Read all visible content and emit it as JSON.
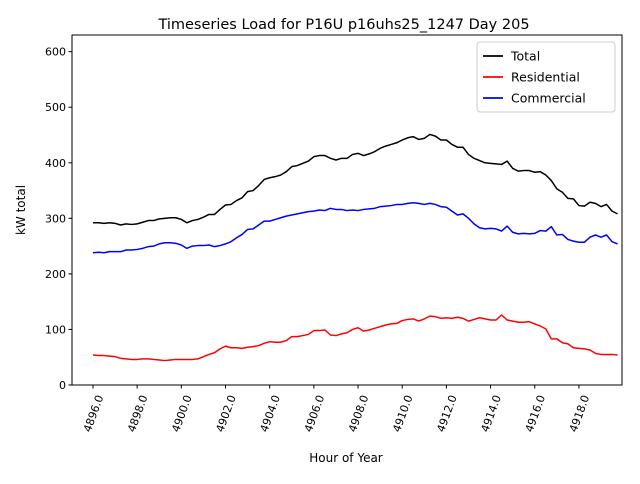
{
  "chart_data": {
    "type": "line",
    "title": "Timeseries Load for P16U p16uhs25_1247  Day 205",
    "xlabel": "Hour of Year",
    "ylabel": "kW total",
    "xlim": [
      4895.05,
      4919.95
    ],
    "ylim": [
      0,
      630
    ],
    "xticks": [
      4896,
      4898,
      4900,
      4902,
      4904,
      4906,
      4908,
      4910,
      4912,
      4914,
      4916,
      4918
    ],
    "xtick_labels": [
      "4896.0",
      "4898.0",
      "4900.0",
      "4902.0",
      "4904.0",
      "4906.0",
      "4908.0",
      "4910.0",
      "4912.0",
      "4914.0",
      "4916.0",
      "4918.0"
    ],
    "yticks": [
      0,
      100,
      200,
      300,
      400,
      500,
      600
    ],
    "ytick_labels": [
      "0",
      "100",
      "200",
      "300",
      "400",
      "500",
      "600"
    ],
    "legend_position": "top-right",
    "x_start": 4896.0,
    "x_step": 0.25,
    "series": [
      {
        "name": "Total",
        "color": "#000000",
        "values": [
          292,
          292,
          291,
          292,
          291,
          288,
          290,
          289,
          290,
          293,
          296,
          296,
          299,
          300,
          301,
          301,
          298,
          292,
          296,
          298,
          302,
          307,
          307,
          316,
          324,
          325,
          332,
          337,
          348,
          350,
          359,
          370,
          373,
          375,
          378,
          384,
          393,
          395,
          399,
          403,
          411,
          413,
          413,
          408,
          405,
          408,
          408,
          415,
          417,
          413,
          416,
          420,
          426,
          430,
          433,
          436,
          441,
          445,
          447,
          442,
          444,
          451,
          448,
          441,
          441,
          433,
          428,
          428,
          415,
          408,
          404,
          400,
          399,
          398,
          397,
          403,
          390,
          385,
          386,
          386,
          383,
          384,
          378,
          368,
          353,
          347,
          336,
          335,
          323,
          322,
          329,
          327,
          321,
          325,
          313,
          308
        ]
      },
      {
        "name": "Residential",
        "color": "#ff0000",
        "values": [
          54,
          53,
          53,
          52,
          51,
          48,
          47,
          46,
          46,
          47,
          47,
          46,
          45,
          44,
          45,
          46,
          46,
          46,
          46,
          47,
          51,
          55,
          58,
          65,
          70,
          67,
          67,
          66,
          68,
          69,
          71,
          75,
          78,
          77,
          77,
          80,
          87,
          87,
          89,
          91,
          98,
          98,
          99,
          90,
          89,
          92,
          94,
          100,
          103,
          97,
          99,
          102,
          105,
          108,
          110,
          111,
          116,
          118,
          119,
          115,
          119,
          124,
          123,
          120,
          121,
          120,
          122,
          120,
          115,
          118,
          121,
          119,
          117,
          117,
          126,
          117,
          115,
          113,
          113,
          114,
          110,
          106,
          101,
          83,
          83,
          76,
          74,
          67,
          66,
          65,
          63,
          57,
          55,
          55,
          55,
          54
        ]
      },
      {
        "name": "Commercial",
        "color": "#0000ff",
        "values": [
          238,
          239,
          238,
          240,
          240,
          240,
          243,
          243,
          244,
          246,
          249,
          250,
          254,
          256,
          256,
          255,
          252,
          246,
          250,
          251,
          251,
          252,
          249,
          251,
          254,
          258,
          265,
          271,
          280,
          281,
          288,
          295,
          295,
          298,
          301,
          304,
          306,
          308,
          310,
          312,
          313,
          315,
          314,
          318,
          316,
          316,
          314,
          315,
          314,
          316,
          317,
          318,
          321,
          322,
          323,
          325,
          325,
          327,
          328,
          327,
          325,
          327,
          325,
          321,
          320,
          313,
          306,
          308,
          300,
          290,
          283,
          281,
          282,
          281,
          277,
          286,
          275,
          272,
          273,
          272,
          273,
          278,
          277,
          285,
          270,
          271,
          262,
          259,
          257,
          257,
          266,
          270,
          266,
          270,
          258,
          254
        ]
      }
    ]
  }
}
